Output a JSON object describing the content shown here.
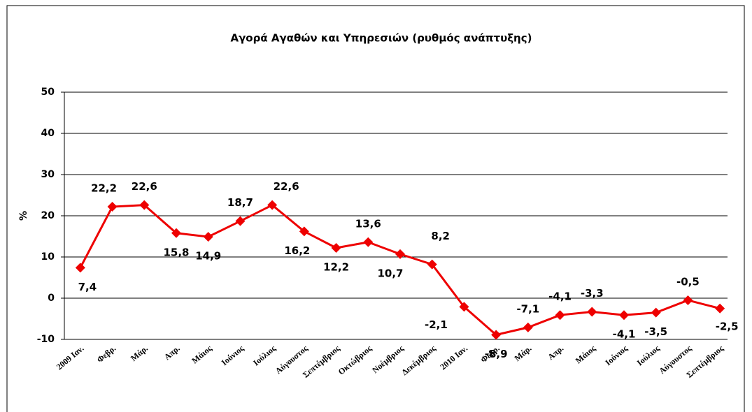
{
  "chart_data": {
    "type": "line",
    "title": "Αγορά Αγαθών και Υπηρεσιών (ρυθμός ανάπτυξης)",
    "y_label": "%",
    "categories": [
      "2009 Ιαν.",
      "Φεβρ.",
      "Μάρ.",
      "Απρ.",
      "Μάιος",
      "Ιούνιος",
      "Ιούλιος",
      "Αύγουστος",
      "Σεπτέμβριος",
      "Οκτώβριος",
      "Νοέμβριος",
      "Δεκέμβριος",
      "2010 Ιαν.",
      "Φεβρ.",
      "Μάρ.",
      "Απρ.",
      "Μάιος",
      "Ιούνιος",
      "Ιούλιος",
      "Αύγουστος",
      "Σεπτέμβριος"
    ],
    "series": [
      {
        "name": "Αγορά Αγαθών και Υπηρεσιών",
        "color": "#ee0000",
        "values": [
          7.4,
          22.2,
          22.6,
          15.8,
          14.9,
          18.7,
          22.6,
          16.2,
          12.2,
          13.6,
          10.7,
          8.2,
          -2.1,
          -8.9,
          -7.1,
          -4.1,
          -3.3,
          -4.1,
          -3.5,
          -0.5,
          -2.5
        ],
        "value_labels": [
          "7,4",
          "22,2",
          "22,6",
          "15,8",
          "14,9",
          "18,7",
          "22,6",
          "16,2",
          "12,2",
          "13,6",
          "10,7",
          "8,2",
          "-2,1",
          "-8,9",
          "-7,1",
          "-4,1",
          "-3,3",
          "-4,1",
          "-3,5",
          "-0,5",
          "-2,5"
        ]
      }
    ],
    "ylim": [
      -10,
      50
    ],
    "yticks": [
      -10,
      0,
      10,
      20,
      30,
      40,
      50
    ],
    "grid": true
  }
}
